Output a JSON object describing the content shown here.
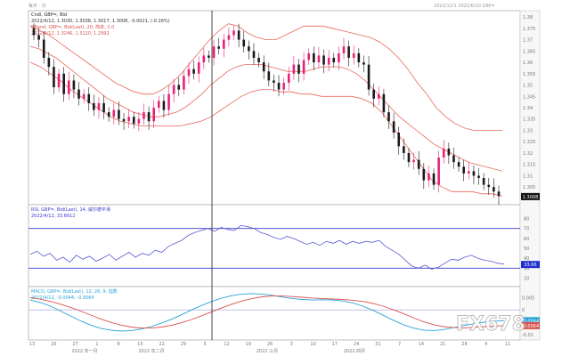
{
  "header": {
    "left_caption": "每天 · 日",
    "right_caption": "2022/12/1 2022/6/10 GBP="
  },
  "chart_data": [
    {
      "type": "candlestick",
      "panel": "price",
      "title": "Cndl, GBP=, Bid",
      "info_lines": [
        "2022/4/12, 1.3030, 1.3038, 1.3017, 1.3008, -0.0021, (-0.16%)",
        "BBand, GBP=, Bid(Last), 20, 简单, 2.0",
        "2022/4/12, 1.3246, 1.3120, 1.2992"
      ],
      "y_ticks": [
        "1.38",
        "1.375",
        "1.37",
        "1.365",
        "1.36",
        "1.355",
        "1.35",
        "1.345",
        "1.34",
        "1.335",
        "1.33",
        "1.325",
        "1.32",
        "1.315",
        "1.31",
        "1.305",
        "1.30"
      ],
      "ylim": [
        1.298,
        1.382
      ],
      "last_value": "1.3008",
      "close": [
        1.372,
        1.37,
        1.362,
        1.358,
        1.349,
        1.355,
        1.346,
        1.352,
        1.348,
        1.344,
        1.346,
        1.342,
        1.339,
        1.342,
        1.338,
        1.336,
        1.339,
        1.335,
        1.334,
        1.336,
        1.333,
        1.335,
        1.338,
        1.334,
        1.34,
        1.343,
        1.339,
        1.346,
        1.35,
        1.348,
        1.354,
        1.357,
        1.355,
        1.36,
        1.363,
        1.362,
        1.367,
        1.366,
        1.37,
        1.372,
        1.374,
        1.37,
        1.367,
        1.365,
        1.362,
        1.36,
        1.356,
        1.352,
        1.351,
        1.348,
        1.351,
        1.355,
        1.359,
        1.355,
        1.361,
        1.364,
        1.36,
        1.363,
        1.359,
        1.362,
        1.36,
        1.364,
        1.367,
        1.362,
        1.364,
        1.36,
        1.359,
        1.348,
        1.344,
        1.346,
        1.338,
        1.334,
        1.329,
        1.323,
        1.32,
        1.316,
        1.317,
        1.313,
        1.308,
        1.311,
        1.306,
        1.318,
        1.322,
        1.319,
        1.316,
        1.314,
        1.311,
        1.312,
        1.31,
        1.309,
        1.306,
        1.305,
        1.303,
        1.301
      ],
      "bb_mid": [
        1.367,
        1.366,
        1.364,
        1.362,
        1.359,
        1.356,
        1.353,
        1.35,
        1.347,
        1.344,
        1.342,
        1.34,
        1.338,
        1.337,
        1.336,
        1.336,
        1.337,
        1.338,
        1.34,
        1.343,
        1.346,
        1.35,
        1.353,
        1.356,
        1.358,
        1.359,
        1.359,
        1.359,
        1.358,
        1.357,
        1.356,
        1.356,
        1.356,
        1.357,
        1.358,
        1.358,
        1.358,
        1.357,
        1.355,
        1.352,
        1.348,
        1.344,
        1.34,
        1.336,
        1.333,
        1.33,
        1.327,
        1.324,
        1.322,
        1.32,
        1.318,
        1.316,
        1.315,
        1.314,
        1.313,
        1.312
      ],
      "bb_upper": [
        1.376,
        1.374,
        1.372,
        1.369,
        1.366,
        1.363,
        1.36,
        1.357,
        1.354,
        1.351,
        1.349,
        1.347,
        1.346,
        1.346,
        1.348,
        1.351,
        1.355,
        1.36,
        1.365,
        1.37,
        1.374,
        1.377,
        1.376,
        1.373,
        1.371,
        1.37,
        1.37,
        1.372,
        1.374,
        1.376,
        1.376,
        1.376,
        1.375,
        1.374,
        1.373,
        1.372,
        1.371,
        1.369,
        1.366,
        1.362,
        1.357,
        1.351,
        1.346,
        1.34,
        1.336,
        1.333,
        1.331,
        1.33,
        1.33,
        1.33,
        1.33
      ],
      "bb_lower": [
        1.36,
        1.358,
        1.355,
        1.352,
        1.348,
        1.345,
        1.342,
        1.339,
        1.336,
        1.334,
        1.333,
        1.332,
        1.332,
        1.332,
        1.332,
        1.332,
        1.333,
        1.334,
        1.336,
        1.339,
        1.342,
        1.345,
        1.347,
        1.348,
        1.348,
        1.347,
        1.347,
        1.346,
        1.346,
        1.345,
        1.345,
        1.345,
        1.345,
        1.344,
        1.342,
        1.338,
        1.332,
        1.326,
        1.32,
        1.314,
        1.308,
        1.305,
        1.303,
        1.303,
        1.303,
        1.302,
        1.302,
        1.301
      ]
    },
    {
      "type": "line",
      "panel": "rsi",
      "title": "RSI, GBP=, Bid(Last), 14, 威尔德平滑",
      "info_lines": [
        "2022/4/12, 33.6612"
      ],
      "y_ticks": [
        "80",
        "70",
        "60",
        "50",
        "40",
        "30",
        "20"
      ],
      "ylim": [
        15,
        85
      ],
      "levels": [
        70,
        30
      ],
      "last_value": "33.66",
      "values": [
        44,
        47,
        42,
        45,
        38,
        41,
        36,
        43,
        39,
        42,
        37,
        40,
        44,
        38,
        42,
        46,
        41,
        45,
        43,
        48,
        46,
        52,
        55,
        58,
        63,
        66,
        68,
        70,
        67,
        71,
        69,
        68,
        73,
        72,
        70,
        66,
        64,
        61,
        59,
        62,
        60,
        57,
        54,
        56,
        53,
        57,
        55,
        58,
        54,
        57,
        55,
        57,
        56,
        58,
        52,
        48,
        44,
        38,
        32,
        30,
        33,
        29,
        31,
        35,
        39,
        38,
        41,
        43,
        40,
        38,
        37,
        35,
        34
      ]
    },
    {
      "type": "line",
      "panel": "macd",
      "title": "MACD, GBP=, Bid(Last), 12, 26, 9, 指数",
      "info_lines": [
        "2022/4/12, -0.0044, -0.0064"
      ],
      "y_ticks": [
        "0.005",
        "0",
        "-0.005",
        "-0.01"
      ],
      "ylim": [
        -0.0115,
        0.008
      ],
      "zero": 0,
      "last_values": [
        "-0.0044",
        "-0.0064"
      ],
      "series": [
        {
          "name": "MACD",
          "color": "#29a3d9",
          "values": [
            0.004,
            0.003,
            0.0015,
            -0.0005,
            -0.0025,
            -0.0045,
            -0.0062,
            -0.0075,
            -0.0083,
            -0.0086,
            -0.0084,
            -0.0078,
            -0.0068,
            -0.0054,
            -0.0038,
            -0.002,
            0.0,
            0.0018,
            0.0034,
            0.0048,
            0.0058,
            0.0064,
            0.0066,
            0.0064,
            0.0059,
            0.0052,
            0.0046,
            0.0042,
            0.004,
            0.0041,
            0.004,
            0.0036,
            0.0028,
            0.0015,
            -0.0002,
            -0.0022,
            -0.0042,
            -0.006,
            -0.0074,
            -0.0082,
            -0.0084,
            -0.008,
            -0.0072,
            -0.0064,
            -0.0056,
            -0.005,
            -0.0046,
            -0.0044
          ]
        },
        {
          "name": "Signal",
          "color": "#d9534f",
          "values": [
            0.005,
            0.0043,
            0.0034,
            0.0023,
            0.001,
            -0.0005,
            -0.0021,
            -0.0037,
            -0.0051,
            -0.0062,
            -0.007,
            -0.0074,
            -0.0074,
            -0.007,
            -0.0063,
            -0.0052,
            -0.0039,
            -0.0024,
            -0.0008,
            0.0008,
            0.0023,
            0.0036,
            0.0046,
            0.0053,
            0.0056,
            0.0056,
            0.0054,
            0.0051,
            0.0048,
            0.0046,
            0.0044,
            0.0042,
            0.0039,
            0.0034,
            0.0026,
            0.0015,
            0.0001,
            -0.0015,
            -0.0032,
            -0.0048,
            -0.006,
            -0.0068,
            -0.0072,
            -0.0073,
            -0.0071,
            -0.0068,
            -0.0066,
            -0.0064
          ]
        }
      ]
    }
  ],
  "x_axis": {
    "ticks": [
      "13",
      "20",
      "27",
      "1",
      "8",
      "15",
      "22",
      "29",
      "5",
      "12",
      "19",
      "26",
      "3",
      "10",
      "17",
      "24",
      "31",
      "7",
      "14",
      "21",
      "28",
      "4",
      "11"
    ],
    "periods": [
      "2022 年一月",
      "2022 年二月",
      "2022 三月",
      "2022 四月"
    ]
  },
  "watermark": "FX678"
}
